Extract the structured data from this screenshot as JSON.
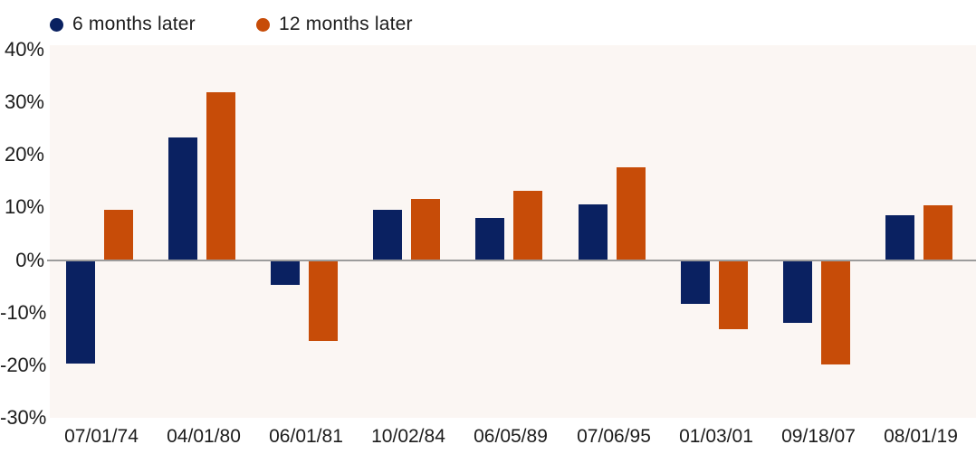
{
  "legend": {
    "items": [
      {
        "label": "6 months later",
        "color": "#0a2161"
      },
      {
        "label": "12 months later",
        "color": "#c74c08"
      }
    ]
  },
  "chart_data": {
    "type": "bar",
    "title": "",
    "xlabel": "",
    "ylabel": "",
    "categories": [
      "07/01/74",
      "04/01/80",
      "06/01/81",
      "10/02/84",
      "06/05/89",
      "07/06/95",
      "01/03/01",
      "09/18/07",
      "08/01/19"
    ],
    "series": [
      {
        "name": "6 months later",
        "color": "#0a2161",
        "values": [
          -19.7,
          23.3,
          -4.8,
          9.6,
          8.0,
          10.6,
          -8.4,
          -11.9,
          8.5
        ]
      },
      {
        "name": "12 months later",
        "color": "#c74c08",
        "values": [
          9.6,
          32.0,
          -15.4,
          11.6,
          13.1,
          17.7,
          -13.2,
          -19.8,
          10.5
        ]
      }
    ],
    "ylim": [
      -30,
      40
    ],
    "yticks": [
      40,
      30,
      20,
      10,
      0,
      -10,
      -20,
      -30
    ],
    "ytick_labels": [
      "40%",
      "30%",
      "20%",
      "10%",
      "0%",
      "-10%",
      "-20%",
      "-30%"
    ],
    "grid": false,
    "legend_position": "top-left",
    "colors": {
      "plot_background": "#fbf6f3",
      "zero_line": "#9c9c9c",
      "text": "#1c1c1c"
    }
  }
}
